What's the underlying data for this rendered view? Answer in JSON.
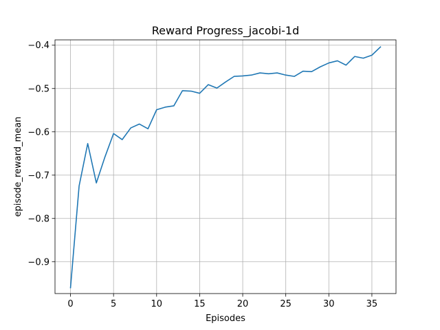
{
  "chart_data": {
    "type": "line",
    "title": "Reward Progress_jacobi-1d",
    "xlabel": "Episodes",
    "ylabel": "episode_reward_mean",
    "xlim": [
      -1.8,
      37.8
    ],
    "ylim": [
      -0.9734,
      -0.3877
    ],
    "xticks": [
      0,
      5,
      10,
      15,
      20,
      25,
      30,
      35
    ],
    "yticks": [
      -0.9,
      -0.8,
      -0.7,
      -0.6,
      -0.5,
      -0.4
    ],
    "ytick_labels": [
      "−0.9",
      "−0.8",
      "−0.7",
      "−0.6",
      "−0.5",
      "−0.4"
    ],
    "grid": true,
    "series": [
      {
        "name": "episode_reward_mean",
        "color": "#1f77b4",
        "x": [
          0,
          1,
          2,
          3,
          4,
          5,
          6,
          7,
          8,
          9,
          10,
          11,
          12,
          13,
          14,
          15,
          16,
          17,
          18,
          19,
          20,
          21,
          22,
          23,
          24,
          25,
          26,
          27,
          28,
          29,
          30,
          31,
          32,
          33,
          34,
          35,
          36
        ],
        "y": [
          -0.96,
          -0.725,
          -0.627,
          -0.718,
          -0.658,
          -0.604,
          -0.618,
          -0.591,
          -0.582,
          -0.593,
          -0.549,
          -0.543,
          -0.54,
          -0.505,
          -0.506,
          -0.511,
          -0.491,
          -0.499,
          -0.485,
          -0.472,
          -0.471,
          -0.469,
          -0.464,
          -0.466,
          -0.464,
          -0.469,
          -0.472,
          -0.46,
          -0.461,
          -0.45,
          -0.441,
          -0.436,
          -0.446,
          -0.426,
          -0.43,
          -0.423,
          -0.404
        ]
      }
    ]
  }
}
